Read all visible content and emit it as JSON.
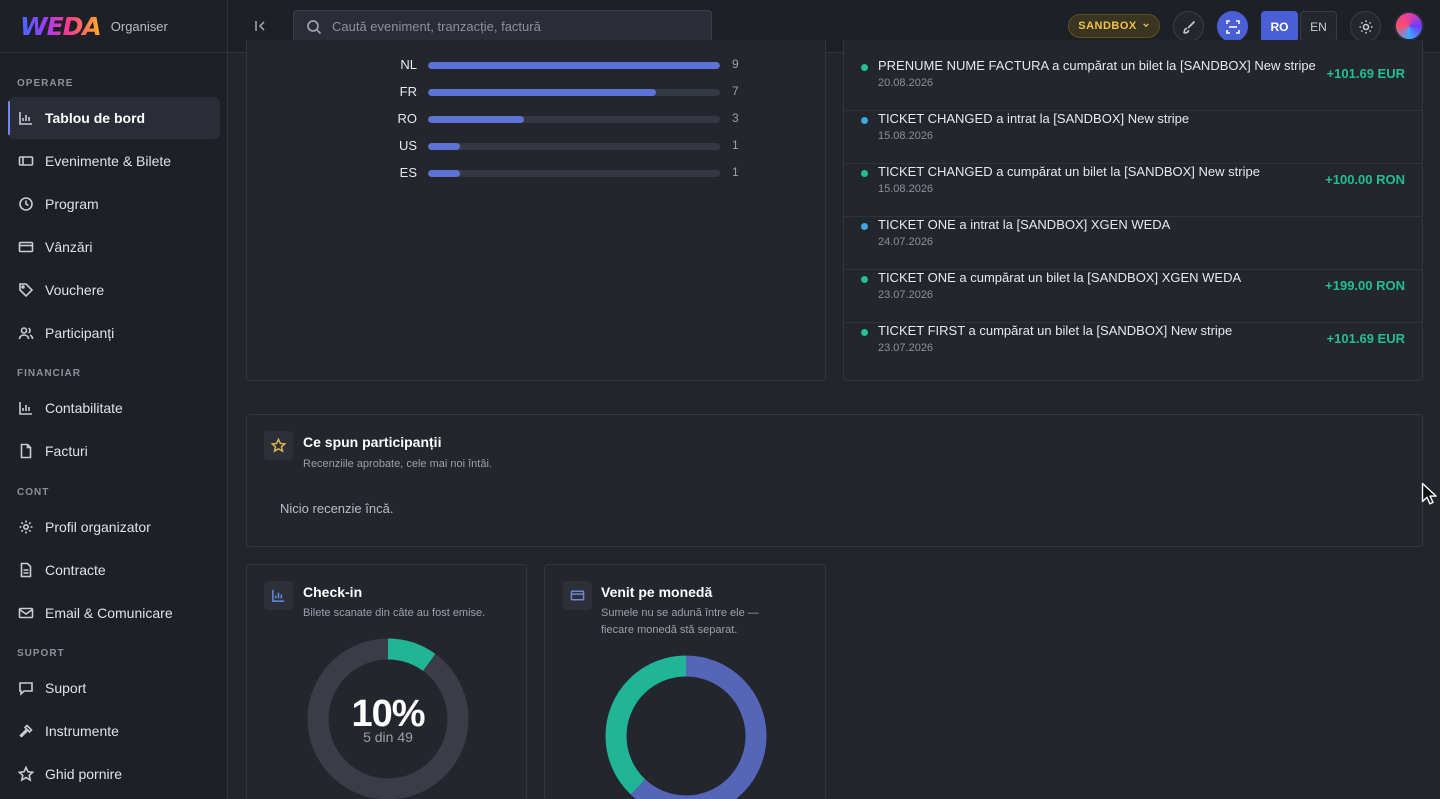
{
  "brand": {
    "logo": "WEDA",
    "subtitle": "Organiser"
  },
  "sidebar": {
    "sections": [
      {
        "title": "OPERARE"
      },
      {
        "title": "FINANCIAR"
      },
      {
        "title": "CONT"
      },
      {
        "title": "SUPORT"
      }
    ],
    "items": [
      {
        "label": "Tablou de bord",
        "icon": "chart-icon",
        "active": true
      },
      {
        "label": "Evenimente & Bilete",
        "icon": "ticket-icon"
      },
      {
        "label": "Program",
        "icon": "clock-icon"
      },
      {
        "label": "Vânzări",
        "icon": "card-icon"
      },
      {
        "label": "Vouchere",
        "icon": "tag-icon"
      },
      {
        "label": "Participanți",
        "icon": "users-icon"
      },
      {
        "label": "Contabilitate",
        "icon": "chart-icon"
      },
      {
        "label": "Facturi",
        "icon": "file-icon"
      },
      {
        "label": "Profil organizator",
        "icon": "gear-icon"
      },
      {
        "label": "Contracte",
        "icon": "document-icon"
      },
      {
        "label": "Email & Comunicare",
        "icon": "mail-icon"
      },
      {
        "label": "Suport",
        "icon": "chat-icon"
      },
      {
        "label": "Instrumente",
        "icon": "hammer-icon"
      },
      {
        "label": "Ghid pornire",
        "icon": "star-icon"
      }
    ]
  },
  "topbar": {
    "search_placeholder": "Caută eveniment, tranzacție, factură",
    "env_badge": "SANDBOX",
    "lang_ro": "RO",
    "lang_en": "EN"
  },
  "countries": [
    {
      "code": "NL",
      "count": 9,
      "fraction": 1.0
    },
    {
      "code": "FR",
      "count": 7,
      "fraction": 0.78
    },
    {
      "code": "RO",
      "count": 3,
      "fraction": 0.33
    },
    {
      "code": "US",
      "count": 1,
      "fraction": 0.11
    },
    {
      "code": "ES",
      "count": 1,
      "fraction": 0.11
    }
  ],
  "activity": [
    {
      "text": "PRENUME NUME FACTURA a cumpărat un bilet la [SANDBOX] New stripe",
      "date": "20.08.2026",
      "amount": "+101.69 EUR",
      "status_color": "#22c08f"
    },
    {
      "text": "TICKET CHANGED a intrat la [SANDBOX] New stripe",
      "date": "15.08.2026",
      "amount": "",
      "status_color": "#3ea6e0"
    },
    {
      "text": "TICKET CHANGED a cumpărat un bilet la [SANDBOX] New stripe",
      "date": "15.08.2026",
      "amount": "+100.00 RON",
      "status_color": "#22c08f"
    },
    {
      "text": "TICKET ONE a intrat la [SANDBOX] XGEN WEDA",
      "date": "24.07.2026",
      "amount": "",
      "status_color": "#3ea6e0"
    },
    {
      "text": "TICKET ONE a cumpărat un bilet la [SANDBOX] XGEN WEDA",
      "date": "23.07.2026",
      "amount": "+199.00 RON",
      "status_color": "#22c08f"
    },
    {
      "text": "TICKET FIRST a cumpărat un bilet la [SANDBOX] New stripe",
      "date": "23.07.2026",
      "amount": "+101.69 EUR",
      "status_color": "#22c08f"
    }
  ],
  "reviews": {
    "title": "Ce spun participanții",
    "subtitle": "Recenziile aprobate, cele mai noi întâi.",
    "empty": "Nicio recenzie încă."
  },
  "checkin": {
    "title": "Check-in",
    "subtitle": "Bilete scanate din câte au fost emise.",
    "percent": "10%",
    "detail": "5 din 49",
    "fraction": 0.1
  },
  "currency": {
    "title": "Venit pe monedă",
    "subtitle_line1": "Sumele nu se adună între ele —",
    "subtitle_line2": "fiecare monedă stă separat.",
    "segments": [
      {
        "color": "#5566b8",
        "fraction": 0.62
      },
      {
        "color": "#1fb596",
        "fraction": 0.38
      }
    ]
  },
  "colors": {
    "accent": "#4a5fd6",
    "positive": "#22c08f",
    "bar": "#5d72d6"
  }
}
